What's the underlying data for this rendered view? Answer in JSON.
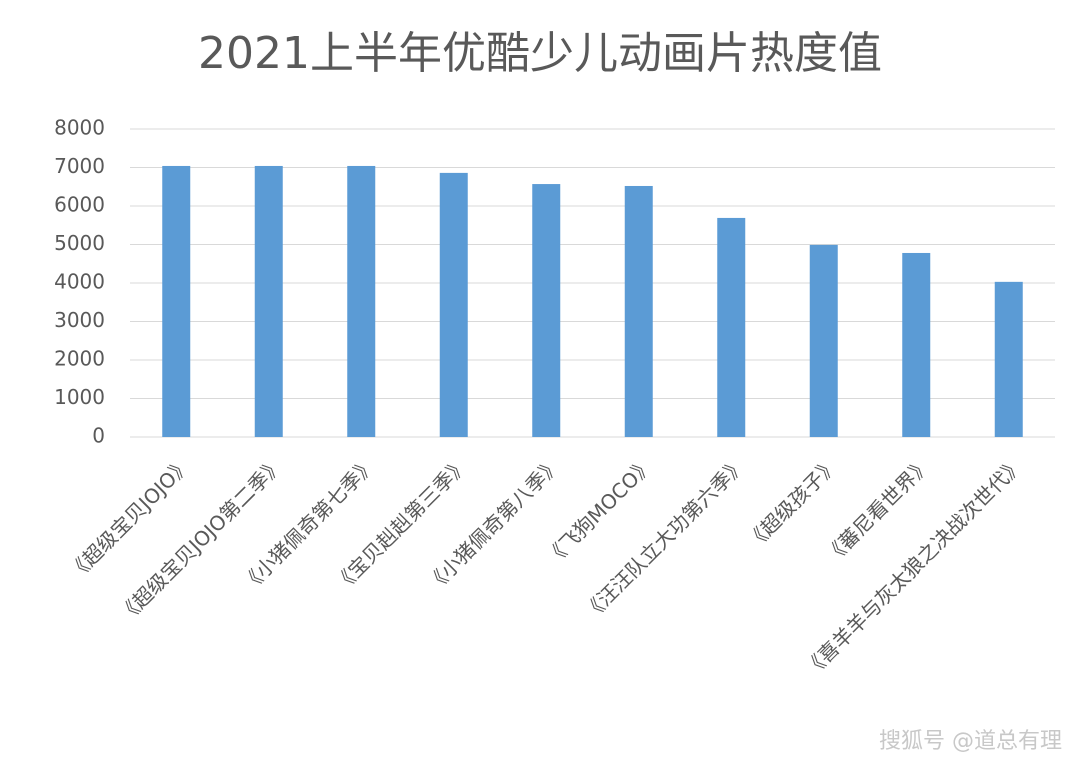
{
  "chart_data": {
    "type": "bar",
    "title": "2021上半年优酷少儿动画片热度值",
    "categories": [
      "《超级宝贝JOJO》",
      "《超级宝贝JOJO第二季》",
      "《小猪佩奇第七季》",
      "《宝贝赳赳第三季》",
      "《小猪佩奇第八季》",
      "《飞狗MOCO》",
      "《汪汪队立大功第六季》",
      "《超级孩子》",
      "《蕃尼看世界》",
      "《喜羊羊与灰太狼之决战次世代》"
    ],
    "values": [
      7040,
      7040,
      7040,
      6860,
      6570,
      6520,
      5690,
      4990,
      4780,
      4030
    ],
    "color": "#5b9bd5",
    "ylim": [
      0,
      8000
    ],
    "yticks": [
      0,
      1000,
      2000,
      3000,
      4000,
      5000,
      6000,
      7000,
      8000
    ],
    "grid": true
  },
  "watermark": "搜狐号 @道总有理"
}
